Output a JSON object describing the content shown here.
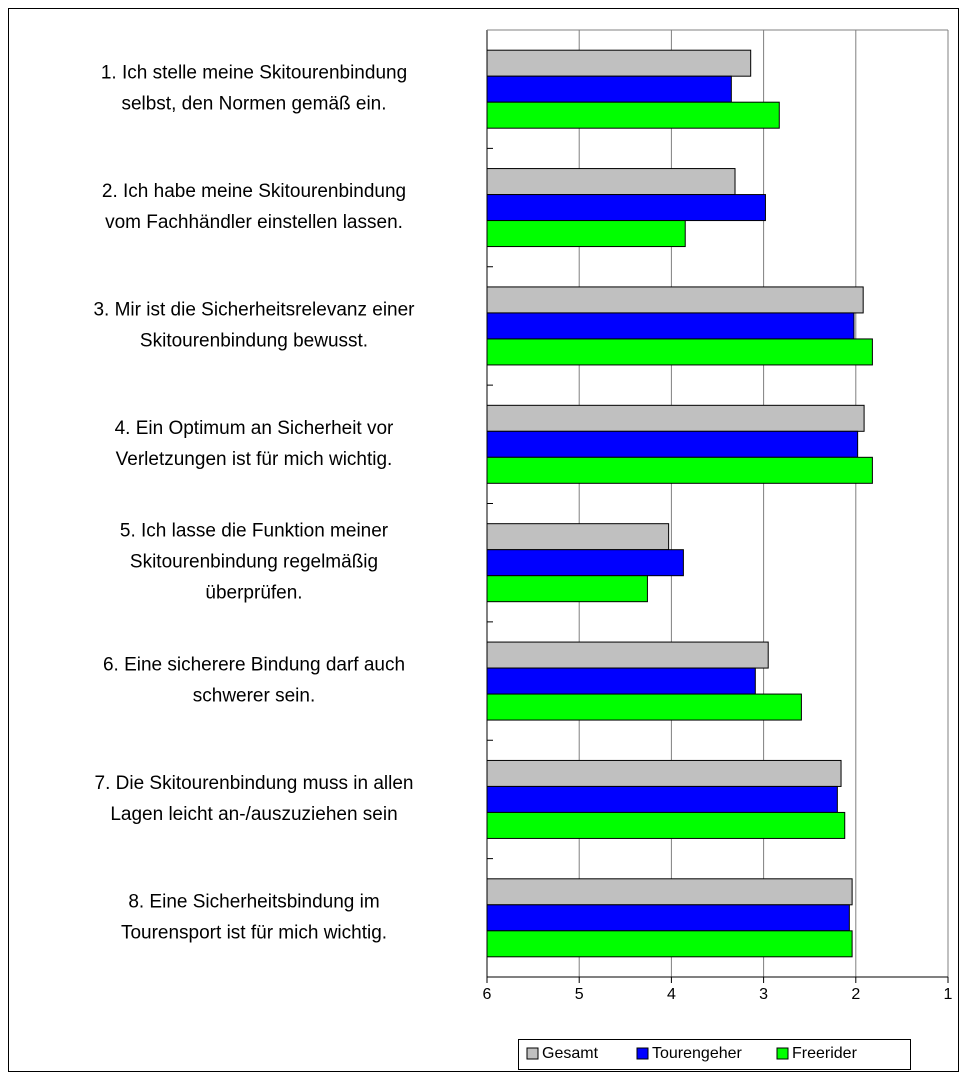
{
  "chart_data": {
    "type": "bar",
    "orientation": "horizontal",
    "categories": [
      [
        "1. Ich stelle meine Skitourenbindung",
        "selbst, den Normen gemäß ein."
      ],
      [
        "2. Ich habe meine Skitourenbindung",
        "vom Fachhändler einstellen lassen."
      ],
      [
        "3. Mir ist die Sicherheitsrelevanz einer",
        "Skitourenbindung bewusst."
      ],
      [
        "4. Ein Optimum an Sicherheit vor",
        "Verletzungen ist für mich wichtig."
      ],
      [
        "5. Ich lasse die Funktion meiner",
        "Skitourenbindung regelmäßig",
        "überprüfen."
      ],
      [
        "6. Eine sicherere Bindung darf auch",
        "schwerer sein."
      ],
      [
        "7. Die Skitourenbindung muss in allen",
        "Lagen leicht an-/auszuziehen sein"
      ],
      [
        "8. Eine Sicherheitsbindung im",
        "Tourensport ist für mich wichtig."
      ]
    ],
    "series": [
      {
        "name": "Gesamt",
        "color": "#c0c0c0",
        "values": [
          3.14,
          3.31,
          1.92,
          1.91,
          4.03,
          2.95,
          2.16,
          2.04
        ]
      },
      {
        "name": "Tourengeher",
        "color": "#0000ff",
        "values": [
          3.35,
          2.98,
          2.02,
          1.98,
          3.87,
          3.09,
          2.2,
          2.07
        ]
      },
      {
        "name": "Freerider",
        "color": "#00ff00",
        "values": [
          2.83,
          3.85,
          1.82,
          1.82,
          4.26,
          2.59,
          2.12,
          2.04
        ]
      }
    ],
    "xlim": [
      6,
      1
    ],
    "xticks": [
      6,
      5,
      4,
      3,
      2,
      1
    ],
    "grid": true,
    "legend": "bottom"
  }
}
